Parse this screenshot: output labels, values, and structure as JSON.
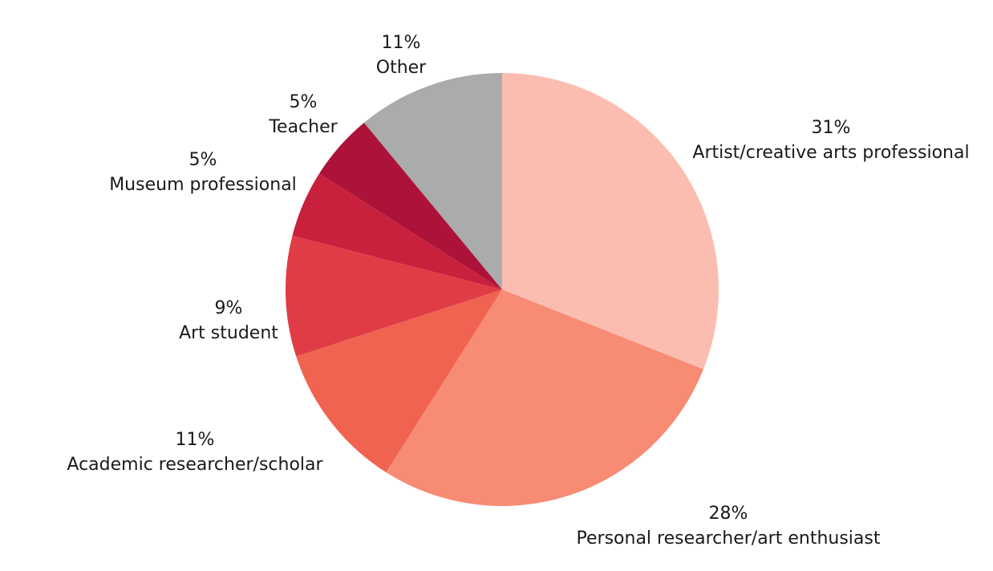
{
  "chart_data": {
    "type": "pie",
    "title": "",
    "slices": [
      {
        "label": "Artist/creative arts professional",
        "value": 31,
        "pct_label": "31%",
        "color": "#fcbdb1"
      },
      {
        "label": "Personal researcher/art enthusiast",
        "value": 28,
        "pct_label": "28%",
        "color": "#f88b74"
      },
      {
        "label": "Academic researcher/scholar",
        "value": 11,
        "pct_label": "11%",
        "color": "#f06350"
      },
      {
        "label": "Art student",
        "value": 9,
        "pct_label": "9%",
        "color": "#e03c45"
      },
      {
        "label": "Museum professional",
        "value": 5,
        "pct_label": "5%",
        "color": "#c8213d"
      },
      {
        "label": "Teacher",
        "value": 5,
        "pct_label": "5%",
        "color": "#ad1238"
      },
      {
        "label": "Other",
        "value": 11,
        "pct_label": "11%",
        "color": "#a9abac"
      }
    ],
    "start_angle": "12 o'clock",
    "direction": "clockwise",
    "legend": "none (direct labels)"
  }
}
